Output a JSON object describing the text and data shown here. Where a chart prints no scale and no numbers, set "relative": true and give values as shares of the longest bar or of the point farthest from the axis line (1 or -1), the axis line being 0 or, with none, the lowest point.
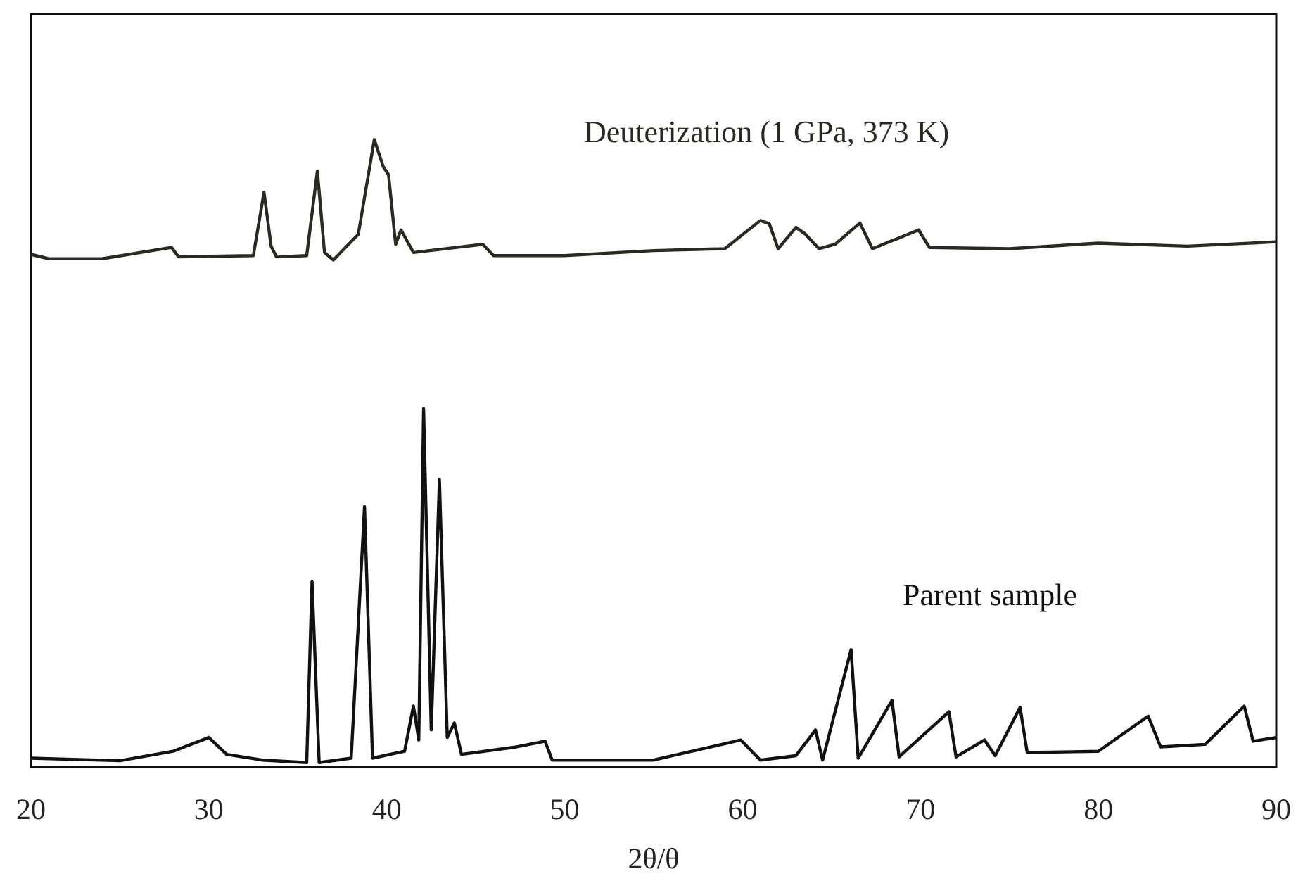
{
  "chart_data": {
    "type": "line",
    "relative": true,
    "xlabel": "2θ/θ",
    "xlim": [
      20,
      90
    ],
    "xticks": [
      20,
      30,
      40,
      50,
      60,
      70,
      80,
      90
    ],
    "grid": false,
    "marker": "none",
    "line_style": "solid",
    "series": [
      {
        "name": "Deuterization (1 GPa, 373 K)",
        "color": "#2a2a22",
        "x": [
          20,
          21,
          24,
          27.9,
          28.3,
          32.5,
          33.1,
          33.5,
          33.8,
          35.5,
          36.1,
          36.5,
          37,
          38.4,
          39.3,
          39.8,
          40.1,
          40.5,
          40.8,
          41.5,
          45.4,
          46,
          50,
          55,
          59,
          61,
          61.5,
          62,
          63,
          63.5,
          64.3,
          65.2,
          66.6,
          67.3,
          69.9,
          70.5,
          75,
          80,
          85,
          90
        ],
        "values": [
          0.817,
          0.81,
          0.81,
          0.828,
          0.813,
          0.815,
          0.916,
          0.83,
          0.813,
          0.815,
          0.95,
          0.82,
          0.808,
          0.849,
          1,
          0.957,
          0.944,
          0.833,
          0.856,
          0.82,
          0.833,
          0.815,
          0.815,
          0.823,
          0.826,
          0.871,
          0.866,
          0.826,
          0.86,
          0.85,
          0.826,
          0.833,
          0.867,
          0.826,
          0.856,
          0.828,
          0.826,
          0.835,
          0.83,
          0.837
        ]
      },
      {
        "name": "Parent sample",
        "color": "#111111",
        "x": [
          20,
          25,
          28,
          30,
          31,
          33,
          35.5,
          35.8,
          36.2,
          38,
          38.75,
          39.2,
          41,
          41.5,
          41.8,
          42.07,
          42.5,
          42.96,
          43.4,
          43.8,
          44.2,
          47.3,
          48.9,
          49.3,
          55,
          59.9,
          61,
          63,
          64.1,
          64.5,
          66.1,
          66.5,
          68.4,
          68.8,
          71.6,
          72,
          73.6,
          74.2,
          75.6,
          76,
          80,
          82.8,
          83.5,
          86,
          88.2,
          88.7,
          90
        ],
        "values": [
          0.014,
          0.01,
          0.025,
          0.047,
          0.02,
          0.011,
          0.007,
          0.296,
          0.007,
          0.014,
          0.415,
          0.014,
          0.025,
          0.097,
          0.043,
          0.571,
          0.059,
          0.458,
          0.047,
          0.07,
          0.02,
          0.032,
          0.041,
          0.011,
          0.011,
          0.043,
          0.011,
          0.018,
          0.059,
          0.011,
          0.187,
          0.014,
          0.106,
          0.016,
          0.088,
          0.016,
          0.043,
          0.018,
          0.095,
          0.023,
          0.025,
          0.081,
          0.032,
          0.036,
          0.097,
          0.041,
          0.047
        ]
      }
    ]
  }
}
